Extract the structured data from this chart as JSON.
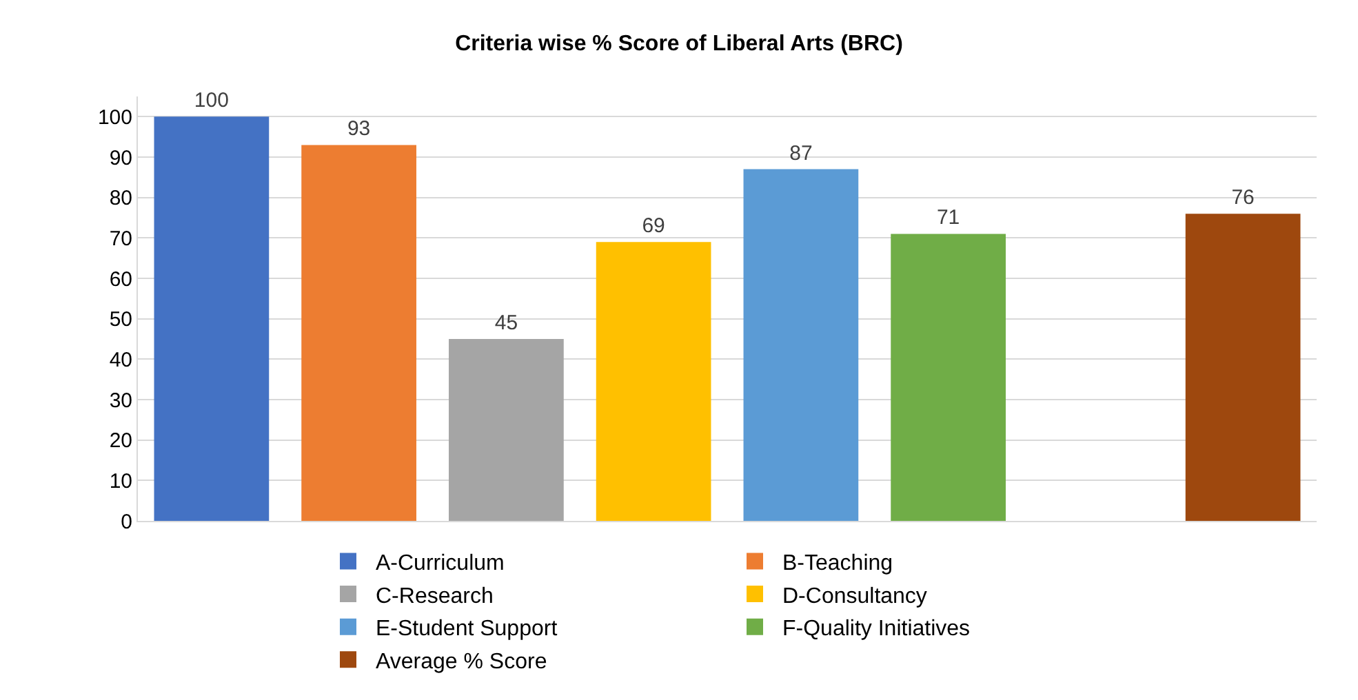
{
  "chart_data": {
    "type": "bar",
    "title": "Criteria wise % Score of Liberal Arts (BRC)",
    "categories": [
      null,
      null,
      null,
      null,
      null,
      null,
      null,
      null
    ],
    "series": [
      {
        "name": "A-Curriculum",
        "color": "#4472c4",
        "values": [
          100,
          null,
          null,
          null,
          null,
          null,
          null,
          null
        ]
      },
      {
        "name": "B-Teaching",
        "color": "#ed7d31",
        "values": [
          null,
          93,
          null,
          null,
          null,
          null,
          null,
          null
        ]
      },
      {
        "name": "C-Research",
        "color": "#a5a5a5",
        "values": [
          null,
          null,
          45,
          null,
          null,
          null,
          null,
          null
        ]
      },
      {
        "name": "D-Consultancy",
        "color": "#ffc000",
        "values": [
          null,
          null,
          null,
          69,
          null,
          null,
          null,
          null
        ]
      },
      {
        "name": "E-Student Support",
        "color": "#5b9bd5",
        "values": [
          null,
          null,
          null,
          null,
          87,
          null,
          null,
          null
        ]
      },
      {
        "name": "F-Quality Initiatives",
        "color": "#70ad47",
        "values": [
          null,
          null,
          null,
          null,
          null,
          71,
          null,
          null
        ]
      },
      {
        "name": "Average % Score",
        "color": "#9e480e",
        "values": [
          null,
          null,
          null,
          null,
          null,
          null,
          null,
          76
        ]
      }
    ],
    "ylim": [
      0,
      105
    ],
    "yticks": [
      0,
      10,
      20,
      30,
      40,
      50,
      60,
      70,
      80,
      90,
      100
    ],
    "grid": "y",
    "legend": "bottom",
    "data_labels": true,
    "tick_labels": "y"
  }
}
